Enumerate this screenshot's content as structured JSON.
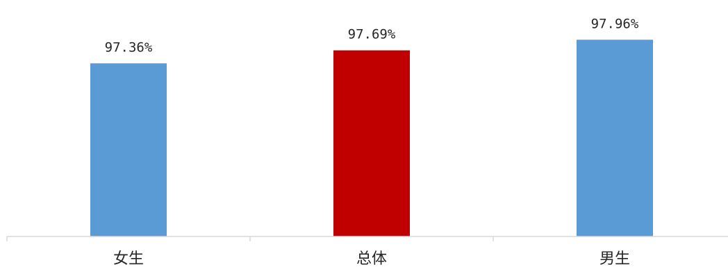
{
  "chart_data": {
    "type": "bar",
    "categories": [
      "女生",
      "总体",
      "男生"
    ],
    "values": [
      97.36,
      97.69,
      97.96
    ],
    "value_labels": [
      "97.36%",
      "97.69%",
      "97.96%"
    ],
    "unit": "%",
    "colors": [
      "#5b9bd5",
      "#c00000",
      "#5b9bd5"
    ],
    "axis_color": "#d9d9d9",
    "title": "",
    "xlabel": "",
    "ylabel": "",
    "grid": false,
    "legend": "none"
  }
}
